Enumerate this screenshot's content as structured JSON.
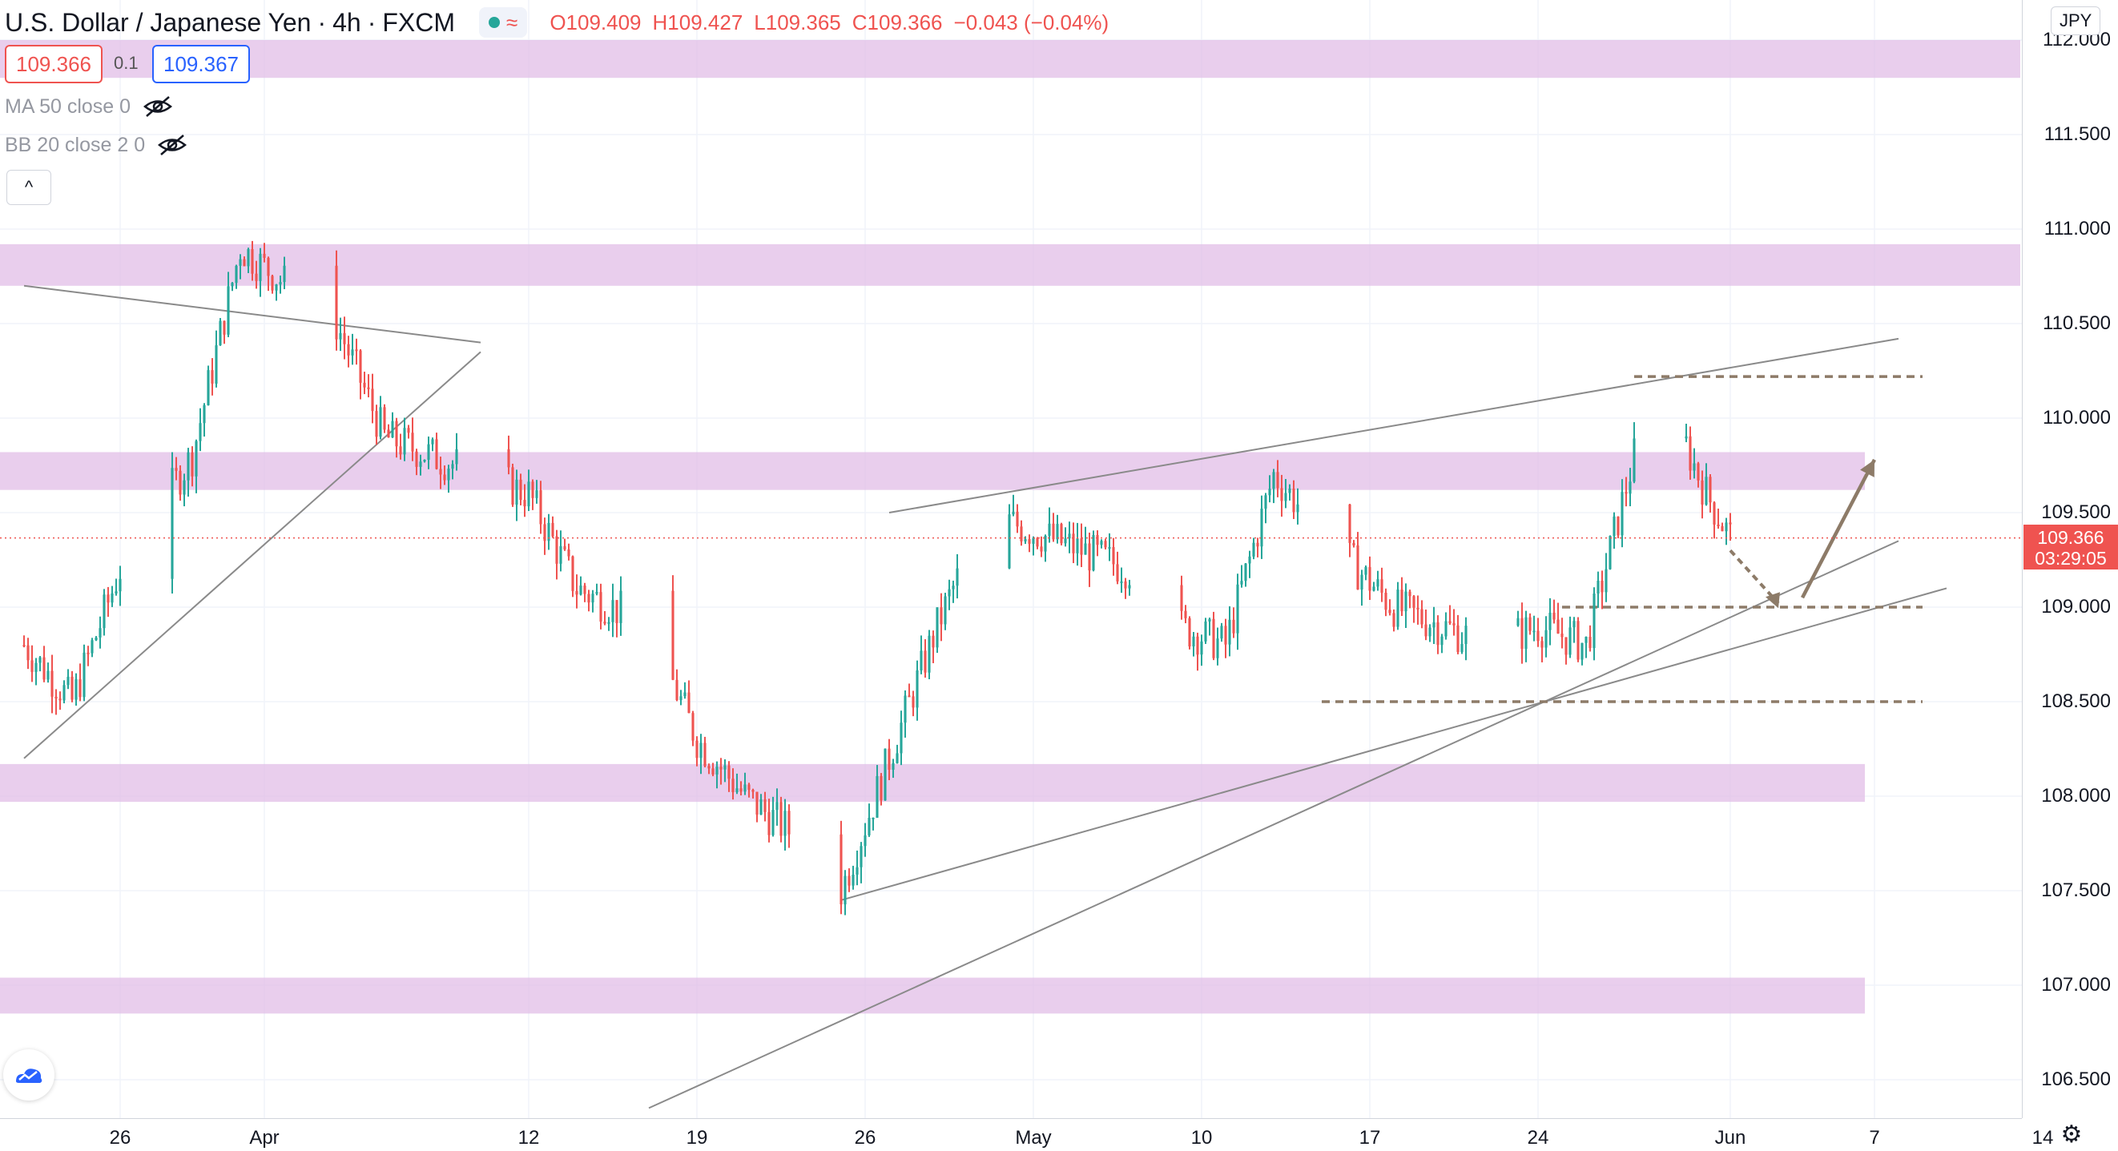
{
  "header": {
    "symbol": "U.S. Dollar / Japanese Yen",
    "interval": "4h",
    "exchange": "FXCM",
    "ohlc": {
      "o": "O109.409",
      "h": "H109.427",
      "l": "L109.365",
      "c": "C109.366",
      "change": "−0.043 (−0.04%)"
    }
  },
  "quote": {
    "bid": "109.366",
    "spread": "0.1",
    "ask": "109.367"
  },
  "indicators": [
    {
      "label": "MA 50 close 0"
    },
    {
      "label": "BB 20 close 2 0"
    }
  ],
  "collapse_glyph": "^",
  "currency": "JPY",
  "price_axis": {
    "labels": [
      "112.000",
      "111.500",
      "111.000",
      "110.500",
      "110.000",
      "109.500",
      "109.000",
      "108.500",
      "108.000",
      "107.500",
      "107.000",
      "106.500"
    ],
    "current_price": "109.366",
    "countdown": "03:29:05"
  },
  "time_axis": {
    "labels": [
      "26",
      "Apr",
      "12",
      "19",
      "26",
      "May",
      "10",
      "17",
      "24",
      "Jun",
      "7",
      "14"
    ]
  },
  "colors": {
    "up": "#26a69a",
    "down": "#ef5350",
    "zone": "#e1bee7",
    "arrow": "#8d7b68"
  },
  "chart_data": {
    "type": "candlestick",
    "title": "U.S. Dollar / Japanese Yen, 4h, FXCM",
    "y_unit": "JPY",
    "ylim": [
      106.35,
      112.1
    ],
    "x_range": [
      "Mar 22",
      "Jun 14"
    ],
    "zones": [
      [
        111.8,
        112.0
      ],
      [
        110.7,
        110.92
      ],
      [
        109.62,
        109.82
      ],
      [
        107.97,
        108.17
      ],
      [
        106.85,
        107.04
      ]
    ],
    "swing_path": [
      [
        "Mar 22",
        108.8
      ],
      [
        "Mar 24",
        108.5
      ],
      [
        "Mar 26",
        109.2
      ],
      [
        "Mar 29",
        109.8
      ],
      [
        "Mar 31",
        110.9
      ],
      [
        "Apr 2",
        110.7
      ],
      [
        "Apr 4",
        110.5
      ],
      [
        "Apr 6",
        109.9
      ],
      [
        "Apr 8",
        109.8
      ],
      [
        "Apr 10",
        109.7
      ],
      [
        "Apr 12",
        109.6
      ],
      [
        "Apr 14",
        109.1
      ],
      [
        "Apr 17",
        108.9
      ],
      [
        "Apr 19",
        108.3
      ],
      [
        "Apr 21",
        108.0
      ],
      [
        "Apr 23",
        107.8
      ],
      [
        "Apr 25",
        107.5
      ],
      [
        "Apr 27",
        108.2
      ],
      [
        "Apr 29",
        108.9
      ],
      [
        "May 1",
        109.5
      ],
      [
        "May 3",
        109.4
      ],
      [
        "May 5",
        109.3
      ],
      [
        "May 7",
        109.2
      ],
      [
        "May 9",
        108.9
      ],
      [
        "May 11",
        108.8
      ],
      [
        "May 13",
        109.7
      ],
      [
        "May 15",
        109.4
      ],
      [
        "May 18",
        109.0
      ],
      [
        "May 20",
        108.9
      ],
      [
        "May 22",
        108.8
      ],
      [
        "May 24",
        108.9
      ],
      [
        "May 26",
        108.8
      ],
      [
        "May 28",
        109.8
      ],
      [
        "May 29",
        110.2
      ],
      [
        "May 31",
        109.6
      ],
      [
        "Jun 1",
        109.37
      ]
    ],
    "trendlines": [
      {
        "from": [
          "Apr 27",
          109.5
        ],
        "to": [
          "Jun 8",
          110.42
        ]
      },
      {
        "from": [
          "Mar 22",
          110.7
        ],
        "to": [
          "Apr 10",
          110.4
        ]
      },
      {
        "from": [
          "Mar 22",
          108.2
        ],
        "to": [
          "Apr 10",
          110.35
        ]
      },
      {
        "from": [
          "Apr 17",
          106.35
        ],
        "to": [
          "Jun 8",
          109.35
        ]
      },
      {
        "from": [
          "Apr 25",
          107.45
        ],
        "to": [
          "Jun 10",
          109.1
        ]
      }
    ],
    "levels": [
      {
        "price": 110.22,
        "from": "May 28",
        "to": "Jun 7"
      },
      {
        "price": 109.0,
        "from": "May 25",
        "to": "Jun 7"
      },
      {
        "price": 108.5,
        "from": "May 15",
        "to": "Jun 7"
      }
    ],
    "projection": [
      [
        "Jun 1",
        109.3
      ],
      [
        "Jun 3",
        109.02
      ],
      [
        "Jun 4",
        109.05
      ],
      [
        "Jun 7",
        109.78
      ]
    ]
  }
}
